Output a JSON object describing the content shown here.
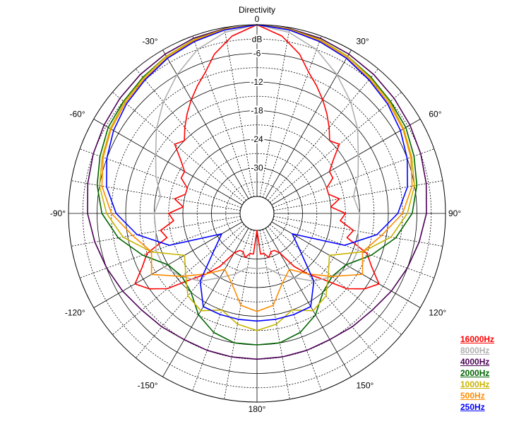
{
  "chart_data": {
    "type": "polar",
    "title": "Directivity",
    "unit": "dB",
    "r_ticks": [
      0,
      -6,
      -12,
      -18,
      -24,
      -30
    ],
    "r_tick_labels": [
      "0",
      "-6",
      "-12",
      "-18",
      "-24",
      "-30"
    ],
    "rlim": [
      -36,
      0
    ],
    "angle_ticks": [
      0,
      30,
      60,
      90,
      120,
      150,
      180,
      -150,
      -120,
      -90,
      -60,
      -30
    ],
    "angle_tick_labels": [
      "0",
      "30°",
      "60°",
      "90°",
      "120°",
      "150°",
      "180°",
      "-150°",
      "-120°",
      "-90°",
      "-60°",
      "-30°"
    ],
    "grid": true,
    "legend_position": "bottom-right",
    "angle_unit": "deg",
    "series": [
      {
        "name": "16000Hz",
        "color": "#ff0000",
        "symmetric": true,
        "angles": [
          0,
          8,
          15,
          20,
          25,
          30,
          35,
          40,
          45,
          50,
          55,
          60,
          65,
          70,
          75,
          80,
          85,
          90,
          95,
          100,
          105,
          110,
          115,
          120,
          125,
          130,
          135,
          140,
          145,
          150,
          155,
          160,
          165,
          170,
          175,
          180
        ],
        "values": [
          0,
          -2,
          -5,
          -8,
          -10,
          -12,
          -14,
          -16,
          -18,
          -17,
          -20,
          -22,
          -22,
          -24,
          -24,
          -22,
          -24,
          -21,
          -22,
          -19,
          -20,
          -15,
          -13,
          -10,
          -12,
          -15,
          -20,
          -23,
          -26,
          -30,
          -31,
          -31,
          -30,
          -31,
          -31,
          -36
        ]
      },
      {
        "name": "8000Hz",
        "color": "#b0b0b0",
        "symmetric": true,
        "angles": [
          0,
          10,
          20,
          30,
          40,
          50,
          60,
          70,
          80,
          90,
          100,
          110,
          120,
          130,
          140,
          150,
          160,
          170,
          180
        ],
        "values": [
          0,
          -1,
          -3,
          -6,
          -9,
          -12,
          -15,
          -17,
          -19,
          -18,
          -18,
          -17,
          -17,
          -19,
          -21,
          -24,
          -26,
          -28,
          -28
        ]
      },
      {
        "name": "4000Hz",
        "color": "#4b0055",
        "symmetric": true,
        "angles": [
          0,
          10,
          20,
          30,
          40,
          50,
          60,
          70,
          80,
          90,
          100,
          110,
          120,
          130,
          140,
          150,
          160,
          170,
          180
        ],
        "values": [
          0,
          -0.2,
          -0.5,
          -1,
          -1.5,
          -2,
          -2.5,
          -3,
          -3.5,
          -4,
          -5,
          -6,
          -7,
          -8,
          -8.5,
          -9,
          -9,
          -9,
          -9
        ]
      },
      {
        "name": "2000Hz",
        "color": "#006400",
        "symmetric": true,
        "angles": [
          0,
          10,
          20,
          30,
          40,
          50,
          60,
          70,
          80,
          90,
          100,
          110,
          120,
          130,
          140,
          150,
          160,
          170,
          180
        ],
        "values": [
          0,
          -0.3,
          -0.8,
          -1.5,
          -2.3,
          -3,
          -3.5,
          -4.5,
          -5.5,
          -7,
          -10,
          -14,
          -18,
          -19,
          -18,
          -15,
          -13,
          -12,
          -12
        ]
      },
      {
        "name": "1000Hz",
        "color": "#c8b400",
        "symmetric": true,
        "angles": [
          0,
          10,
          20,
          30,
          40,
          50,
          60,
          70,
          80,
          90,
          100,
          110,
          120,
          130,
          140,
          150,
          160,
          170,
          180
        ],
        "values": [
          0,
          -0.3,
          -0.8,
          -1.5,
          -2.5,
          -3.2,
          -4,
          -5,
          -6,
          -8,
          -11,
          -16,
          -22,
          -20,
          -17,
          -16,
          -18,
          -16,
          -15
        ]
      },
      {
        "name": "500Hz",
        "color": "#ff8c00",
        "symmetric": true,
        "angles": [
          0,
          10,
          20,
          30,
          40,
          50,
          60,
          70,
          80,
          90,
          100,
          110,
          120,
          130,
          140,
          150,
          160,
          170,
          180
        ],
        "values": [
          0,
          -0.4,
          -1,
          -1.8,
          -2.8,
          -3.5,
          -4.2,
          -5.2,
          -6.5,
          -9,
          -13,
          -16,
          -14,
          -19,
          -23,
          -26,
          -24,
          -20,
          -19
        ]
      },
      {
        "name": "250Hz",
        "color": "#0000ff",
        "symmetric": true,
        "angles": [
          0,
          10,
          20,
          30,
          40,
          50,
          60,
          70,
          80,
          90,
          100,
          110,
          120,
          130,
          140,
          150,
          160,
          170,
          180
        ],
        "values": [
          0,
          -0.5,
          -1.2,
          -2,
          -3,
          -3.8,
          -4.8,
          -6,
          -7.5,
          -10,
          -14,
          -20,
          -31,
          -28,
          -21,
          -17,
          -17,
          -17,
          -17
        ]
      }
    ]
  }
}
